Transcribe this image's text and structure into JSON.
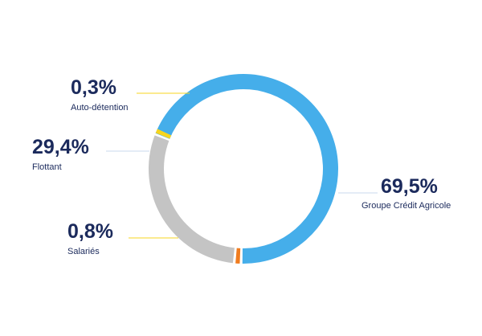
{
  "chart_data": {
    "type": "pie",
    "donut": true,
    "grid": false,
    "legend": "none",
    "slices": [
      {
        "label": "Groupe Crédit Agricole",
        "value": 69.5,
        "display": "69,5%",
        "color": "#45aeea"
      },
      {
        "label": "Salariés",
        "value": 0.8,
        "display": "0,8%",
        "color": "#f07c1f"
      },
      {
        "label": "Flottant",
        "value": 29.4,
        "display": "29,4%",
        "color": "#c4c4c4"
      },
      {
        "label": "Auto-détention",
        "value": 0.3,
        "display": "0,3%",
        "color": "#f7d51f"
      }
    ]
  }
}
